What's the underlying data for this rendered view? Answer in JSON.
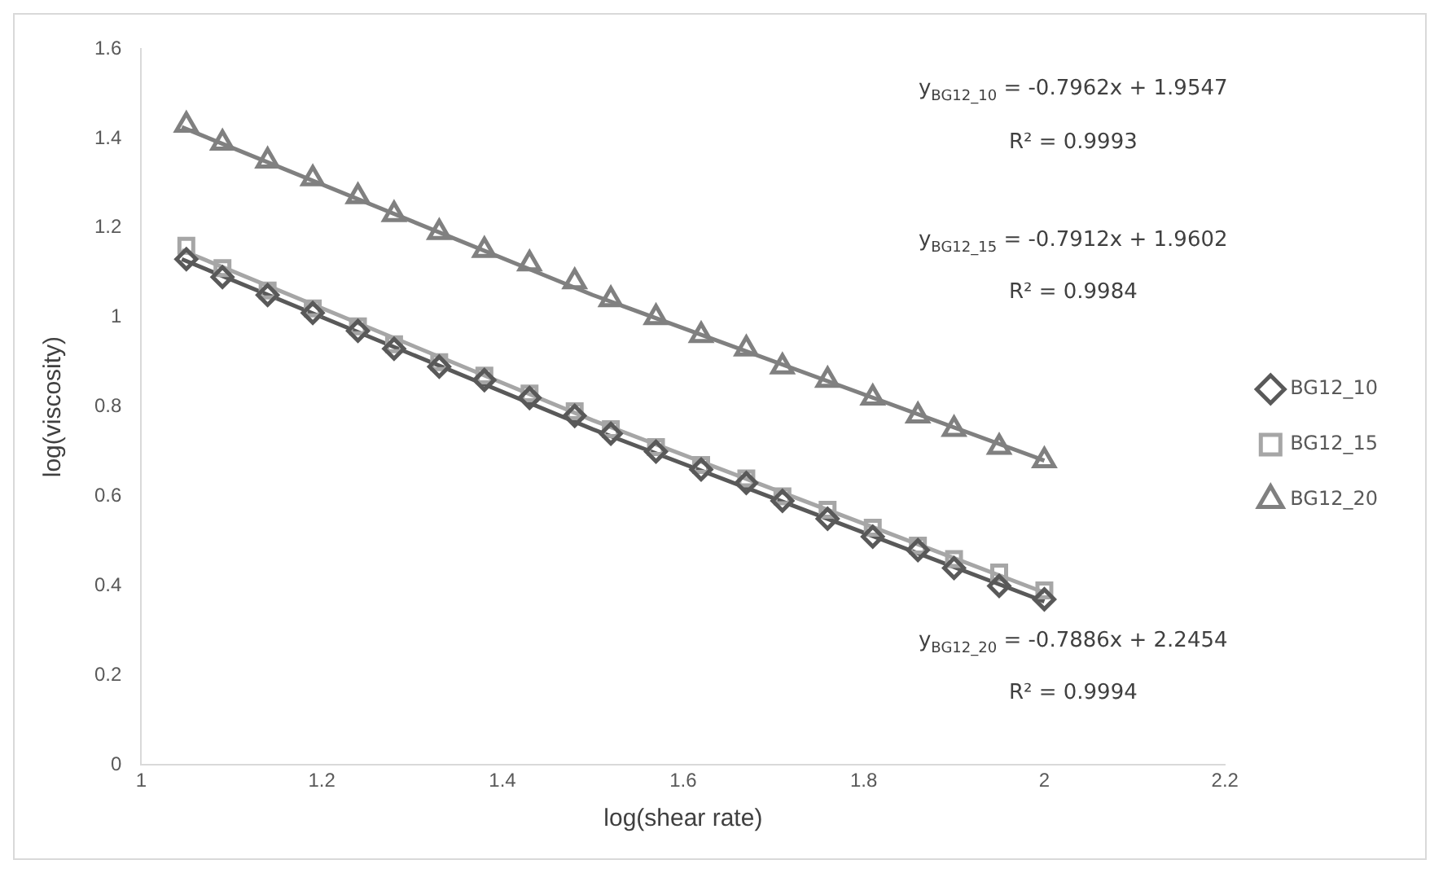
{
  "chart_data": {
    "type": "scatter",
    "xlabel": "log(shear rate)",
    "ylabel": "log(viscosity)",
    "xlim": [
      1,
      2.2
    ],
    "xticks": [
      1,
      1.2,
      1.4,
      1.6,
      1.8,
      2,
      2.2
    ],
    "ylim": [
      0,
      1.6
    ],
    "yticks": [
      0,
      0.2,
      0.4,
      0.6,
      0.8,
      1,
      1.2,
      1.4,
      1.6
    ],
    "grid": false,
    "legend": "right",
    "x": [
      1.05,
      1.09,
      1.14,
      1.19,
      1.24,
      1.28,
      1.33,
      1.38,
      1.43,
      1.48,
      1.52,
      1.57,
      1.62,
      1.67,
      1.71,
      1.76,
      1.81,
      1.86,
      1.9,
      1.95,
      2.0
    ],
    "series": [
      {
        "name": "BG12_10",
        "color": "#595959",
        "marker": "diamond",
        "values": [
          1.13,
          1.09,
          1.05,
          1.01,
          0.97,
          0.93,
          0.89,
          0.86,
          0.82,
          0.78,
          0.74,
          0.7,
          0.66,
          0.63,
          0.59,
          0.55,
          0.51,
          0.48,
          0.44,
          0.4,
          0.37
        ]
      },
      {
        "name": "BG12_15",
        "color": "#a6a6a6",
        "marker": "square",
        "values": [
          1.16,
          1.11,
          1.06,
          1.02,
          0.98,
          0.94,
          0.9,
          0.87,
          0.83,
          0.79,
          0.75,
          0.71,
          0.67,
          0.64,
          0.6,
          0.57,
          0.53,
          0.49,
          0.46,
          0.43,
          0.39
        ]
      },
      {
        "name": "BG12_20",
        "color": "#808080",
        "marker": "triangle",
        "values": [
          1.43,
          1.39,
          1.35,
          1.31,
          1.27,
          1.23,
          1.19,
          1.15,
          1.12,
          1.08,
          1.04,
          1.0,
          0.96,
          0.93,
          0.89,
          0.86,
          0.82,
          0.78,
          0.75,
          0.71,
          0.68
        ]
      },
      {
        "type": "line",
        "color": "#808080",
        "marker": "none",
        "x": [
          1.045,
          1.5,
          2.0
        ],
        "values": [
          1.425,
          1.05,
          0.68
        ]
      },
      {
        "type": "line",
        "color": "#a6a6a6",
        "marker": "none",
        "x": [
          1.045,
          1.5,
          2.0
        ],
        "values": [
          1.15,
          0.77,
          0.385
        ]
      },
      {
        "type": "line",
        "color": "#595959",
        "marker": "none",
        "x": [
          1.045,
          1.5,
          2.0
        ],
        "values": [
          1.13,
          0.75,
          0.365
        ]
      }
    ],
    "annotations": [
      "y$_{BG12_10}$ = -0.7962x + 1.9547",
      "R² = 0.9993",
      "y$_{BG12_15}$ = -0.7912x + 1.9602",
      "R² = 0.9984",
      "y$_{BG12_20}$ = -0.7886x + 2.2454",
      "R² = 0.9994"
    ]
  }
}
